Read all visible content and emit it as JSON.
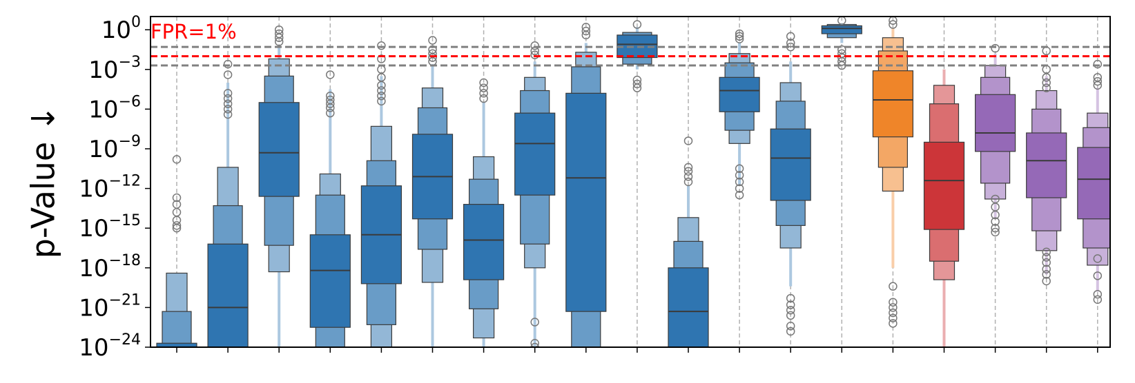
{
  "chart_data": {
    "type": "boxenplot",
    "title": "",
    "xlabel": "",
    "ylabel": "p-Value ↓",
    "yscale": "log",
    "y_exponent_lim": [
      -24,
      1
    ],
    "y_ticks": [
      {
        "base": "10",
        "exp": "0"
      },
      {
        "base": "10",
        "exp": "−3"
      },
      {
        "base": "10",
        "exp": "−6"
      },
      {
        "base": "10",
        "exp": "−9"
      },
      {
        "base": "10",
        "exp": "−12"
      },
      {
        "base": "10",
        "exp": "−15"
      },
      {
        "base": "10",
        "exp": "−18"
      },
      {
        "base": "10",
        "exp": "−21"
      },
      {
        "base": "10",
        "exp": "−24"
      }
    ],
    "y_tick_exponents": [
      0,
      -3,
      -6,
      -9,
      -12,
      -15,
      -18,
      -21,
      -24
    ],
    "grid": "vertical dashed",
    "reference_lines": [
      {
        "label": "FPR=1%",
        "log10_y": -2,
        "color": "#ff0000"
      },
      {
        "label": "",
        "log10_y": -1.3,
        "color": "#808080"
      },
      {
        "label": "",
        "log10_y": -2.7,
        "color": "#808080"
      }
    ],
    "colors": {
      "blue": "#2f75b1",
      "orange": "#ef8529",
      "red": "#cc3539",
      "purple": "#9569b7"
    },
    "series": [
      {
        "color": "blue",
        "median": -24.0,
        "boxes": [
          [
            -24.6,
            -23.7
          ],
          [
            -24.6,
            -21.3
          ],
          [
            -24.6,
            -18.4
          ]
        ],
        "whisker": [
          -24.6,
          -18.4
        ],
        "outliers": [
          -9.8,
          -12.7,
          -13.2,
          -13.8,
          -14.4,
          -14.8,
          -15.0
        ]
      },
      {
        "color": "blue",
        "median": -21.0,
        "boxes": [
          [
            -24.6,
            -16.2
          ],
          [
            -24.6,
            -13.3
          ],
          [
            -24.6,
            -10.4
          ]
        ],
        "whisker": [
          -24.6,
          -4.0
        ],
        "outliers": [
          -2.6,
          -3.4,
          -4.8,
          -5.2,
          -5.6,
          -6.0,
          -6.4
        ]
      },
      {
        "color": "blue",
        "median": -9.3,
        "boxes": [
          [
            -12.6,
            -5.5
          ],
          [
            -16.3,
            -3.5
          ],
          [
            -18.3,
            -2.2
          ]
        ],
        "whisker": [
          -24.0,
          -1.2
        ],
        "outliers": [
          0.0,
          -0.3,
          -0.6,
          -0.9
        ]
      },
      {
        "color": "blue",
        "median": -18.2,
        "boxes": [
          [
            -22.5,
            -15.5
          ],
          [
            -24.6,
            -12.5
          ],
          [
            -24.6,
            -10.9
          ]
        ],
        "whisker": [
          -24.6,
          -4.5
        ],
        "outliers": [
          -3.4,
          -5.0,
          -5.3,
          -5.6,
          -5.9,
          -6.3
        ]
      },
      {
        "color": "blue",
        "median": -15.5,
        "boxes": [
          [
            -19.2,
            -11.8
          ],
          [
            -22.3,
            -9.9
          ],
          [
            -24.6,
            -7.3
          ]
        ],
        "whisker": [
          -24.6,
          -3.5
        ],
        "outliers": [
          -1.2,
          -2.2,
          -3.0,
          -3.6,
          -4.2,
          -4.6,
          -5.0,
          -5.4
        ]
      },
      {
        "color": "blue",
        "median": -11.1,
        "boxes": [
          [
            -14.3,
            -7.9
          ],
          [
            -16.6,
            -5.9
          ],
          [
            -19.1,
            -4.4
          ]
        ],
        "whisker": [
          -24.0,
          -2.6
        ],
        "outliers": [
          -0.8,
          -1.5,
          -1.8,
          -2.1,
          -2.4
        ]
      },
      {
        "color": "blue",
        "median": -15.9,
        "boxes": [
          [
            -18.9,
            -13.2
          ],
          [
            -21.1,
            -11.3
          ],
          [
            -23.3,
            -9.6
          ]
        ],
        "whisker": [
          -24.3,
          -5.5
        ],
        "outliers": [
          -4.0,
          -4.4,
          -4.8,
          -5.2
        ]
      },
      {
        "color": "blue",
        "median": -8.6,
        "boxes": [
          [
            -12.5,
            -6.3
          ],
          [
            -16.2,
            -4.6
          ],
          [
            -18.0,
            -3.6
          ]
        ],
        "whisker": [
          -24.2,
          -2.4
        ],
        "outliers": [
          -1.2,
          -1.6,
          -1.9,
          -22.1,
          -23.7,
          -24.0
        ]
      },
      {
        "color": "blue",
        "median": -11.2,
        "boxes": [
          [
            -21.3,
            -4.8
          ],
          [
            -24.6,
            -2.8
          ],
          [
            -24.6,
            -1.7
          ]
        ],
        "whisker": [
          -24.6,
          -1.0
        ],
        "outliers": [
          0.2,
          -0.1,
          -0.4
        ]
      },
      {
        "color": "blue",
        "median": -1.1,
        "boxes": [
          [
            -2.1,
            -0.4
          ],
          [
            -2.6,
            -0.2
          ]
        ],
        "whisker": [
          -3.0,
          0.2
        ],
        "outliers": [
          0.4,
          -3.8,
          -4.1,
          -4.4
        ]
      },
      {
        "color": "blue",
        "median": -21.3,
        "boxes": [
          [
            -24.3,
            -18.0
          ],
          [
            -24.6,
            -16.0
          ],
          [
            -24.6,
            -14.2
          ]
        ],
        "whisker": [
          -24.6,
          -11.8
        ],
        "outliers": [
          -8.4,
          -10.4,
          -10.7,
          -11.1,
          -11.5
        ]
      },
      {
        "color": "blue",
        "median": -4.6,
        "boxes": [
          [
            -6.2,
            -3.6
          ],
          [
            -7.6,
            -2.5
          ],
          [
            -8.6,
            -1.8
          ]
        ],
        "whisker": [
          -11.7,
          -1.0
        ],
        "outliers": [
          -0.3,
          -0.5,
          -0.7,
          -10.5,
          -11.0,
          -11.5,
          -12.0,
          -12.5
        ]
      },
      {
        "color": "blue",
        "median": -9.7,
        "boxes": [
          [
            -12.9,
            -7.5
          ],
          [
            -14.8,
            -5.4
          ],
          [
            -16.5,
            -4.0
          ]
        ],
        "whisker": [
          -19.4,
          -2.4
        ],
        "outliers": [
          -0.5,
          -1.0,
          -1.3,
          -20.3,
          -20.8,
          -21.2,
          -21.6,
          -22.4,
          -22.8
        ]
      },
      {
        "color": "blue",
        "median": 0.1,
        "boxes": [
          [
            -0.3,
            0.3
          ],
          [
            -0.6,
            0.4
          ]
        ],
        "whisker": [
          -1.0,
          0.5
        ],
        "outliers": [
          0.7,
          -1.5,
          -1.8,
          -2.1,
          -2.4,
          -2.7
        ]
      },
      {
        "color": "orange",
        "median": -5.3,
        "boxes": [
          [
            -8.1,
            -3.1
          ],
          [
            -10.4,
            -1.6
          ],
          [
            -12.2,
            -0.6
          ]
        ],
        "whisker": [
          -18.0,
          0.1
        ],
        "outliers": [
          0.4,
          0.7,
          -19.4,
          -20.6,
          -21.0,
          -21.4,
          -21.8,
          -22.2
        ]
      },
      {
        "color": "red",
        "median": -11.4,
        "boxes": [
          [
            -15.1,
            -8.5
          ],
          [
            -17.5,
            -5.6
          ],
          [
            -18.9,
            -4.2
          ]
        ],
        "whisker": [
          -24.6,
          -3.0
        ],
        "outliers": []
      },
      {
        "color": "purple",
        "median": -7.8,
        "boxes": [
          [
            -9.2,
            -4.9
          ],
          [
            -11.6,
            -3.6
          ],
          [
            -12.8,
            -2.7
          ]
        ],
        "whisker": [
          -14.3,
          -1.8
        ],
        "outliers": [
          -1.4,
          -12.8,
          -13.4,
          -14.0,
          -14.5,
          -15.0,
          -15.3
        ]
      },
      {
        "color": "purple",
        "median": -9.9,
        "boxes": [
          [
            -12.7,
            -7.8
          ],
          [
            -15.2,
            -6.0
          ],
          [
            -16.7,
            -4.6
          ]
        ],
        "whisker": [
          -18.5,
          -3.5
        ],
        "outliers": [
          -1.6,
          -3.0,
          -3.6,
          -4.0,
          -4.4,
          -16.8,
          -17.2,
          -17.6,
          -18.1,
          -18.5,
          -19.0
        ]
      },
      {
        "color": "purple",
        "median": -11.3,
        "boxes": [
          [
            -14.3,
            -8.9
          ],
          [
            -16.5,
            -7.4
          ],
          [
            -17.8,
            -6.3
          ]
        ],
        "whisker": [
          -19.8,
          -4.4
        ],
        "outliers": [
          -2.6,
          -3.6,
          -3.9,
          -4.2,
          -17.3,
          -18.6,
          -20.0,
          -20.4
        ]
      }
    ]
  }
}
